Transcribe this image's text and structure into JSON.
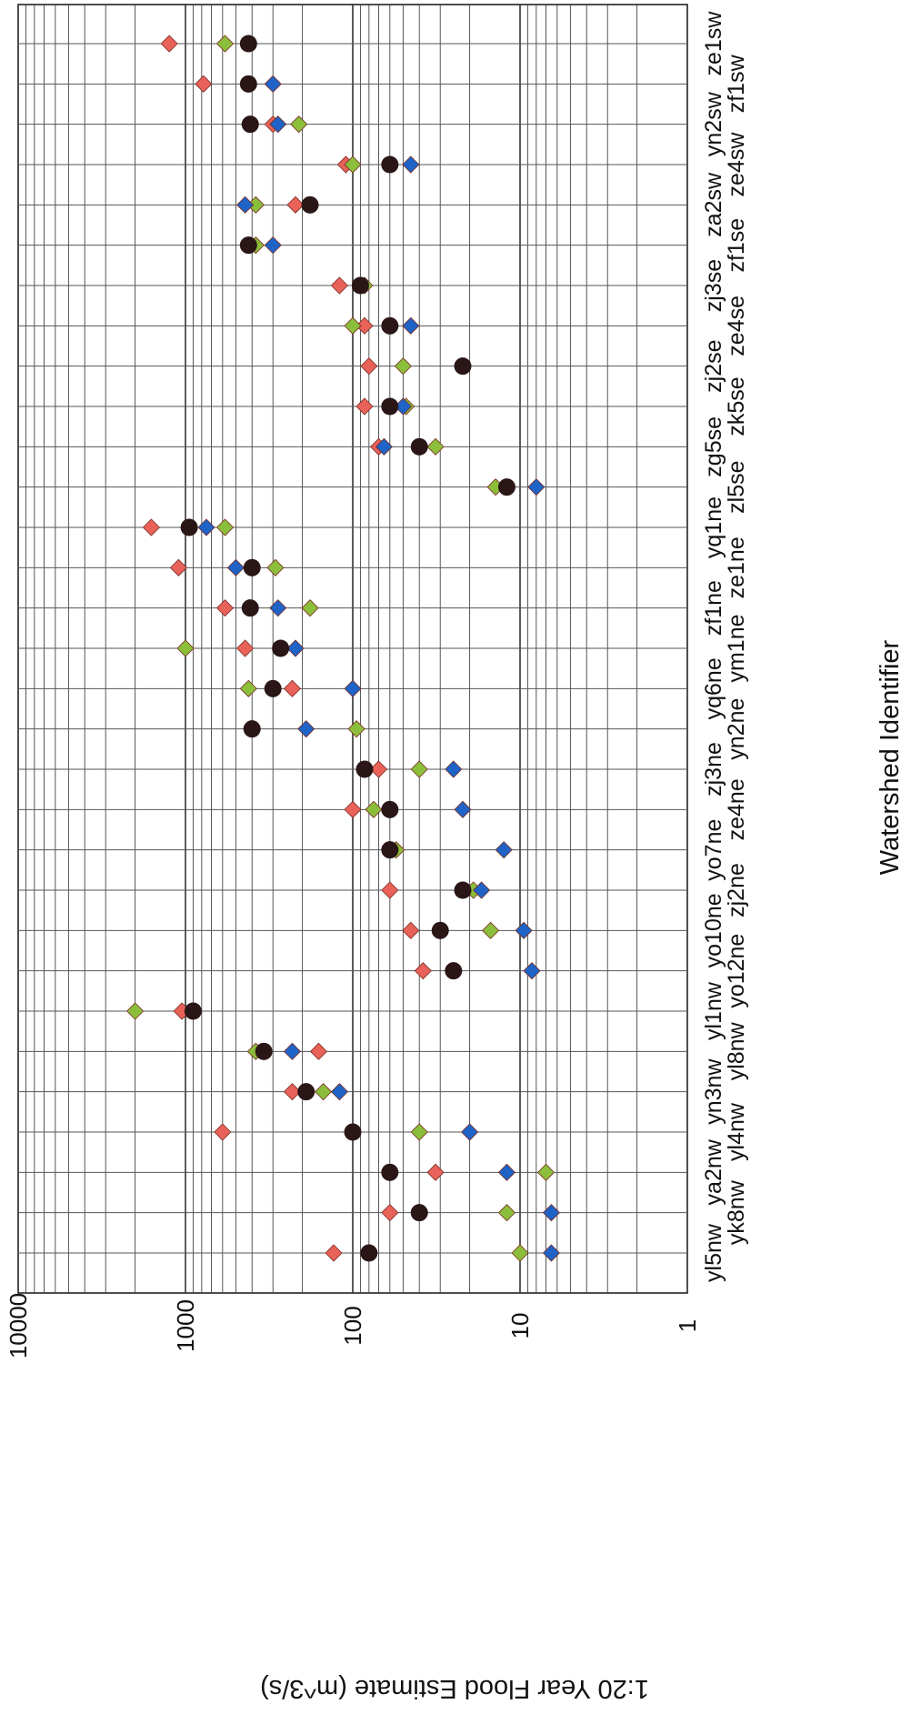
{
  "chart_data": {
    "type": "scatter",
    "orientation": "rotated-90-clockwise",
    "xlabel": "Watershed Identifier",
    "ylabel": "1:20 Year Flood Estimate (m^3/s)",
    "yscale": "log",
    "ylim": [
      1,
      10000
    ],
    "yticks": [
      "10000",
      "1000",
      "100",
      "10",
      "1"
    ],
    "grid": true,
    "legend": "none",
    "categories": [
      "yl5nw",
      "yk8nw",
      "ya2nw",
      "yl4nw",
      "yn3nw",
      "yl8nw",
      "yl1nw",
      "yo12ne",
      "yo10ne",
      "zj2ne",
      "yo7ne",
      "ze4ne",
      "zj3ne",
      "yn2ne",
      "yq6ne",
      "ym1ne",
      "zf1ne",
      "ze1ne",
      "yq1ne",
      "zl5se",
      "zg5se",
      "zk5se",
      "zj2se",
      "ze4se",
      "zj3se",
      "zf1se",
      "za2sw",
      "ze4sw",
      "yn2sw",
      "zf1sw",
      "ze1sw"
    ],
    "series": [
      {
        "color": "#e8625a",
        "marker": "diamond",
        "values": [
          130,
          60,
          32,
          600,
          230,
          160,
          1050,
          38,
          45,
          60,
          null,
          100,
          70,
          null,
          230,
          440,
          580,
          1100,
          1600,
          null,
          70,
          85,
          80,
          85,
          120,
          null,
          220,
          110,
          300,
          780,
          1250
        ]
      },
      {
        "color": "#8bbe3a",
        "marker": "diamond",
        "values": [
          10,
          12,
          7,
          40,
          150,
          380,
          2000,
          null,
          15,
          19,
          55,
          75,
          40,
          95,
          420,
          1000,
          180,
          290,
          580,
          14,
          32,
          48,
          50,
          100,
          85,
          380,
          380,
          100,
          210,
          null,
          580
        ]
      },
      {
        "color": "#1f63c6",
        "marker": "diamond",
        "values": [
          6.5,
          6.5,
          12,
          20,
          120,
          230,
          null,
          8.5,
          9.5,
          17,
          12.5,
          22,
          25,
          190,
          100,
          220,
          280,
          500,
          750,
          8,
          65,
          50,
          null,
          45,
          null,
          300,
          440,
          45,
          280,
          300,
          null
        ]
      },
      {
        "color": "#2a1616",
        "marker": "circle",
        "values": [
          80,
          40,
          60,
          100,
          190,
          340,
          900,
          25,
          30,
          22,
          60,
          60,
          85,
          400,
          300,
          270,
          410,
          400,
          950,
          12,
          40,
          60,
          22,
          60,
          90,
          420,
          180,
          60,
          410,
          420,
          420
        ]
      }
    ]
  }
}
